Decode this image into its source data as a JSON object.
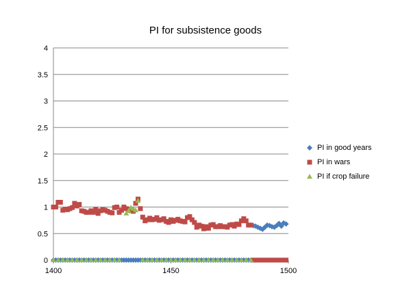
{
  "chart_data": {
    "type": "scatter",
    "title": "PI for subsistence goods",
    "xlabel": "",
    "ylabel": "",
    "xlim": [
      1400,
      1500
    ],
    "ylim": [
      0,
      4
    ],
    "x_ticks": [
      1400,
      1450,
      1500
    ],
    "y_ticks": [
      0,
      0.5,
      1,
      1.5,
      2,
      2.5,
      3,
      3.5,
      4
    ],
    "x_tick_labels": [
      "1400",
      "1450",
      "1500"
    ],
    "y_tick_labels": [
      "0",
      "0.5",
      "1",
      "1.5",
      "2",
      "2.5",
      "3",
      "3.5",
      "4"
    ],
    "grid": "horizontal",
    "legend_position": "right",
    "series": [
      {
        "name": "PI in good years",
        "color": "#4a7ebb",
        "marker": "diamond",
        "points": [
          [
            1400,
            0
          ],
          [
            1401,
            0
          ],
          [
            1402,
            0
          ],
          [
            1403,
            0
          ],
          [
            1404,
            0
          ],
          [
            1405,
            0
          ],
          [
            1406,
            0
          ],
          [
            1407,
            0
          ],
          [
            1408,
            0
          ],
          [
            1409,
            0
          ],
          [
            1410,
            0
          ],
          [
            1411,
            0
          ],
          [
            1412,
            0
          ],
          [
            1413,
            0
          ],
          [
            1414,
            0
          ],
          [
            1415,
            0
          ],
          [
            1416,
            0
          ],
          [
            1417,
            0
          ],
          [
            1418,
            0
          ],
          [
            1419,
            0
          ],
          [
            1420,
            0
          ],
          [
            1421,
            0
          ],
          [
            1422,
            0
          ],
          [
            1423,
            0
          ],
          [
            1424,
            0
          ],
          [
            1425,
            0
          ],
          [
            1426,
            0
          ],
          [
            1427,
            0
          ],
          [
            1428,
            0
          ],
          [
            1429,
            0
          ],
          [
            1430,
            0
          ],
          [
            1431,
            0
          ],
          [
            1432,
            0
          ],
          [
            1433,
            0
          ],
          [
            1434,
            0
          ],
          [
            1435,
            0
          ],
          [
            1436,
            0
          ],
          [
            1437,
            0
          ],
          [
            1438,
            0
          ],
          [
            1439,
            0
          ],
          [
            1440,
            0
          ],
          [
            1441,
            0
          ],
          [
            1442,
            0
          ],
          [
            1443,
            0
          ],
          [
            1444,
            0
          ],
          [
            1445,
            0
          ],
          [
            1446,
            0
          ],
          [
            1447,
            0
          ],
          [
            1448,
            0
          ],
          [
            1449,
            0
          ],
          [
            1450,
            0
          ],
          [
            1451,
            0
          ],
          [
            1452,
            0
          ],
          [
            1453,
            0
          ],
          [
            1454,
            0
          ],
          [
            1455,
            0
          ],
          [
            1456,
            0
          ],
          [
            1457,
            0
          ],
          [
            1458,
            0
          ],
          [
            1459,
            0
          ],
          [
            1460,
            0
          ],
          [
            1461,
            0
          ],
          [
            1462,
            0
          ],
          [
            1463,
            0
          ],
          [
            1464,
            0
          ],
          [
            1465,
            0
          ],
          [
            1466,
            0
          ],
          [
            1467,
            0
          ],
          [
            1468,
            0
          ],
          [
            1469,
            0
          ],
          [
            1470,
            0
          ],
          [
            1471,
            0
          ],
          [
            1472,
            0
          ],
          [
            1473,
            0
          ],
          [
            1474,
            0
          ],
          [
            1475,
            0
          ],
          [
            1476,
            0
          ],
          [
            1477,
            0
          ],
          [
            1478,
            0
          ],
          [
            1479,
            0
          ],
          [
            1480,
            0
          ],
          [
            1481,
            0
          ],
          [
            1482,
            0
          ],
          [
            1483,
            0
          ],
          [
            1484,
            0
          ],
          [
            1485,
            0.65
          ],
          [
            1486,
            0.64
          ],
          [
            1487,
            0.62
          ],
          [
            1488,
            0.6
          ],
          [
            1489,
            0.58
          ],
          [
            1490,
            0.62
          ],
          [
            1491,
            0.66
          ],
          [
            1492,
            0.65
          ],
          [
            1493,
            0.63
          ],
          [
            1494,
            0.62
          ],
          [
            1495,
            0.65
          ],
          [
            1496,
            0.69
          ],
          [
            1497,
            0.64
          ],
          [
            1498,
            0.7
          ],
          [
            1499,
            0.68
          ]
        ]
      },
      {
        "name": "PI in wars",
        "color": "#be4b48",
        "marker": "square",
        "points": [
          [
            1400,
            1.0
          ],
          [
            1401,
            1.0
          ],
          [
            1402,
            1.09
          ],
          [
            1403,
            1.09
          ],
          [
            1404,
            0.94
          ],
          [
            1405,
            0.96
          ],
          [
            1406,
            0.95
          ],
          [
            1407,
            0.97
          ],
          [
            1408,
            0.99
          ],
          [
            1409,
            1.07
          ],
          [
            1410,
            1.02
          ],
          [
            1411,
            1.05
          ],
          [
            1412,
            0.93
          ],
          [
            1413,
            0.92
          ],
          [
            1414,
            0.9
          ],
          [
            1415,
            0.9
          ],
          [
            1416,
            0.93
          ],
          [
            1417,
            0.9
          ],
          [
            1418,
            0.96
          ],
          [
            1419,
            0.88
          ],
          [
            1420,
            0.93
          ],
          [
            1421,
            0.95
          ],
          [
            1422,
            0.94
          ],
          [
            1423,
            0.92
          ],
          [
            1424,
            0.9
          ],
          [
            1425,
            0.89
          ],
          [
            1426,
            0.99
          ],
          [
            1427,
            1.0
          ],
          [
            1428,
            0.9
          ],
          [
            1429,
            0.94
          ],
          [
            1430,
            1.0
          ],
          [
            1431,
            0.97
          ],
          [
            1432,
            0.95
          ],
          [
            1433,
            0.93
          ],
          [
            1434,
            0.92
          ],
          [
            1435,
            1.07
          ],
          [
            1436,
            1.15
          ],
          [
            1437,
            0.97
          ],
          [
            1438,
            0.81
          ],
          [
            1439,
            0.74
          ],
          [
            1440,
            0.76
          ],
          [
            1441,
            0.79
          ],
          [
            1442,
            0.76
          ],
          [
            1443,
            0.77
          ],
          [
            1444,
            0.8
          ],
          [
            1445,
            0.75
          ],
          [
            1446,
            0.76
          ],
          [
            1447,
            0.78
          ],
          [
            1448,
            0.73
          ],
          [
            1449,
            0.71
          ],
          [
            1450,
            0.76
          ],
          [
            1451,
            0.73
          ],
          [
            1452,
            0.75
          ],
          [
            1453,
            0.77
          ],
          [
            1454,
            0.74
          ],
          [
            1455,
            0.73
          ],
          [
            1456,
            0.72
          ],
          [
            1457,
            0.8
          ],
          [
            1458,
            0.82
          ],
          [
            1459,
            0.76
          ],
          [
            1460,
            0.71
          ],
          [
            1461,
            0.62
          ],
          [
            1462,
            0.66
          ],
          [
            1463,
            0.64
          ],
          [
            1464,
            0.59
          ],
          [
            1465,
            0.63
          ],
          [
            1466,
            0.6
          ],
          [
            1467,
            0.66
          ],
          [
            1468,
            0.67
          ],
          [
            1469,
            0.63
          ],
          [
            1470,
            0.63
          ],
          [
            1471,
            0.65
          ],
          [
            1472,
            0.63
          ],
          [
            1473,
            0.63
          ],
          [
            1474,
            0.62
          ],
          [
            1475,
            0.66
          ],
          [
            1476,
            0.67
          ],
          [
            1477,
            0.64
          ],
          [
            1478,
            0.68
          ],
          [
            1479,
            0.67
          ],
          [
            1480,
            0.74
          ],
          [
            1481,
            0.78
          ],
          [
            1482,
            0.74
          ],
          [
            1483,
            0.66
          ],
          [
            1484,
            0.66
          ],
          [
            1485,
            0
          ],
          [
            1486,
            0
          ],
          [
            1487,
            0
          ],
          [
            1488,
            0
          ],
          [
            1489,
            0
          ],
          [
            1490,
            0
          ],
          [
            1491,
            0
          ],
          [
            1492,
            0
          ],
          [
            1493,
            0
          ],
          [
            1494,
            0
          ],
          [
            1495,
            0
          ],
          [
            1496,
            0
          ],
          [
            1497,
            0
          ],
          [
            1498,
            0
          ],
          [
            1499,
            0
          ]
        ]
      },
      {
        "name": "PI if crop failure",
        "color": "#98b954",
        "marker": "triangle",
        "points": [
          [
            1400,
            0
          ],
          [
            1402,
            0
          ],
          [
            1404,
            0
          ],
          [
            1406,
            0
          ],
          [
            1408,
            0
          ],
          [
            1410,
            0
          ],
          [
            1412,
            0
          ],
          [
            1414,
            0
          ],
          [
            1416,
            0
          ],
          [
            1418,
            0
          ],
          [
            1420,
            0
          ],
          [
            1422,
            0
          ],
          [
            1424,
            0
          ],
          [
            1426,
            0
          ],
          [
            1428,
            0
          ],
          [
            1431,
            0.88
          ],
          [
            1432,
            0.93
          ],
          [
            1433,
            0.99
          ],
          [
            1434,
            0.97
          ],
          [
            1435,
            0.94
          ],
          [
            1436,
            1.12
          ],
          [
            1438,
            0
          ],
          [
            1440,
            0
          ],
          [
            1442,
            0
          ],
          [
            1444,
            0
          ],
          [
            1446,
            0
          ],
          [
            1448,
            0
          ],
          [
            1450,
            0
          ],
          [
            1452,
            0
          ],
          [
            1454,
            0
          ],
          [
            1456,
            0
          ],
          [
            1458,
            0
          ],
          [
            1460,
            0
          ],
          [
            1462,
            0
          ],
          [
            1464,
            0
          ],
          [
            1466,
            0
          ],
          [
            1468,
            0
          ],
          [
            1470,
            0
          ],
          [
            1472,
            0
          ],
          [
            1474,
            0
          ],
          [
            1476,
            0
          ],
          [
            1478,
            0
          ],
          [
            1480,
            0
          ],
          [
            1482,
            0
          ],
          [
            1484,
            0
          ]
        ]
      }
    ]
  }
}
